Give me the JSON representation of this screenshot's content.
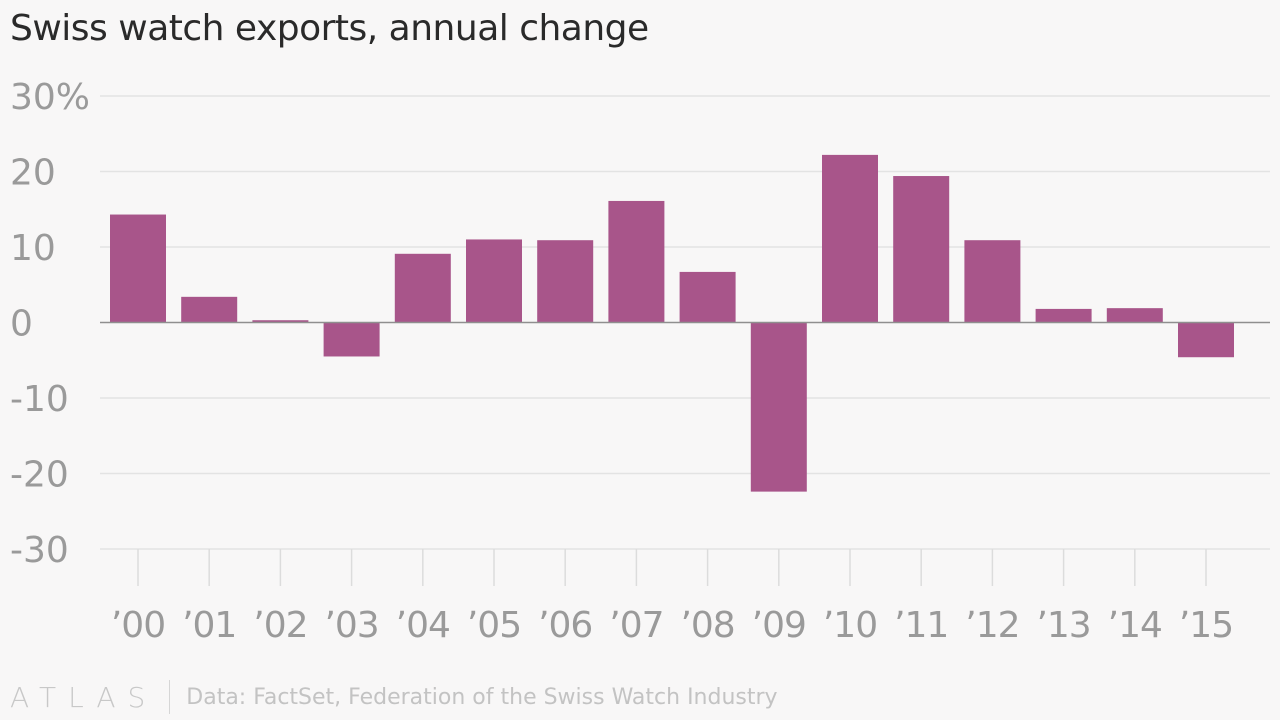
{
  "chart_data": {
    "type": "bar",
    "title": "Swiss watch exports, annual change",
    "categories": [
      "’00",
      "’01",
      "’02",
      "’03",
      "’04",
      "’05",
      "’06",
      "’07",
      "’08",
      "’09",
      "’10",
      "’11",
      "’12",
      "’13",
      "’14",
      "’15"
    ],
    "values": [
      14.3,
      3.4,
      0.3,
      -4.5,
      9.1,
      11.0,
      10.9,
      16.1,
      6.7,
      -22.4,
      22.2,
      19.4,
      10.9,
      1.8,
      1.9,
      -4.6
    ],
    "ylim": [
      -30,
      30
    ],
    "yticks": [
      30,
      20,
      10,
      0,
      -10,
      -20,
      -30
    ],
    "ytick_labels": [
      "30%",
      "20",
      "10",
      "0",
      "-10",
      "-20",
      "-30"
    ],
    "xlabel": "",
    "ylabel": "",
    "bar_color": "#a8558a",
    "grid": true
  },
  "footer": {
    "brand": "ATLAS",
    "source": "Data: FactSet, Federation of the Swiss Watch Industry"
  }
}
